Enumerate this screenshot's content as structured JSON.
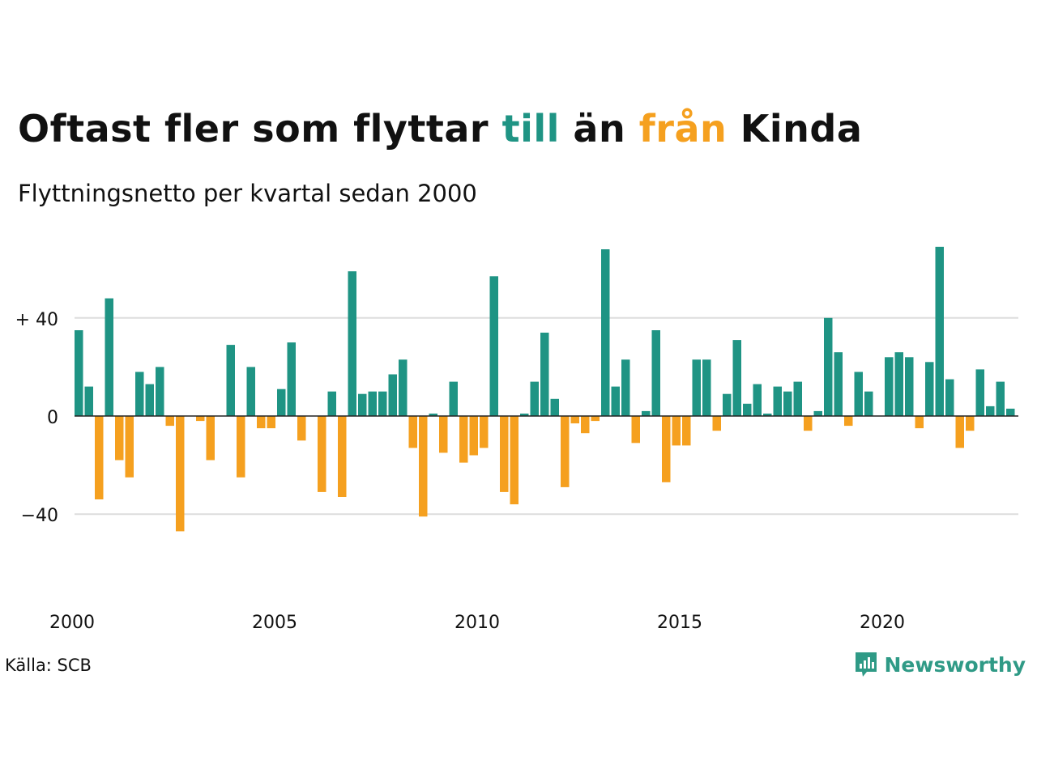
{
  "title": {
    "part1": "Oftast fler som flyttar ",
    "highlight_in": "till",
    "part2": " än ",
    "highlight_out": "från",
    "part3": " Kinda"
  },
  "subtitle": "Flyttningsnetto per kvartal sedan 2000",
  "source": "Källa: SCB",
  "brand": {
    "name": "Newsworthy",
    "icon": "newsworthy-logo-icon"
  },
  "colors": {
    "positive": "#1f9484",
    "negative": "#f5a01f",
    "grid": "#dddddd",
    "baseline": "#222222",
    "text": "#111111"
  },
  "chart_data": {
    "type": "bar",
    "title": "Oftast fler som flyttar till än från Kinda",
    "subtitle": "Flyttningsnetto per kvartal sedan 2000",
    "xlabel": "",
    "ylabel": "",
    "ylim": [
      -56,
      70
    ],
    "y_ticks": [
      {
        "value": 40,
        "label": "+ 40"
      },
      {
        "value": 0,
        "label": "0"
      },
      {
        "value": -40,
        "label": "−40"
      }
    ],
    "x_ticks": [
      "2000",
      "2005",
      "2010",
      "2015",
      "2020"
    ],
    "start_year": 2000,
    "period": "quarter",
    "values": [
      35,
      12,
      -34,
      48,
      -18,
      -25,
      18,
      13,
      20,
      -4,
      -47,
      0,
      -2,
      -18,
      0,
      29,
      -25,
      20,
      -5,
      -5,
      11,
      30,
      -10,
      0,
      -31,
      10,
      -33,
      59,
      9,
      10,
      10,
      17,
      23,
      -13,
      -41,
      1,
      -15,
      14,
      -19,
      -16,
      -13,
      57,
      -31,
      -36,
      1,
      14,
      34,
      7,
      -29,
      -3,
      -7,
      -2,
      68,
      12,
      23,
      -11,
      2,
      35,
      -27,
      -12,
      -12,
      23,
      23,
      -6,
      9,
      31,
      5,
      13,
      1,
      12,
      10,
      14,
      -6,
      2,
      40,
      26,
      -4,
      18,
      10,
      0,
      24,
      26,
      24,
      -5,
      22,
      69,
      15,
      -13,
      -6,
      19,
      4,
      14,
      3
    ],
    "grid": true,
    "legend": "none"
  }
}
